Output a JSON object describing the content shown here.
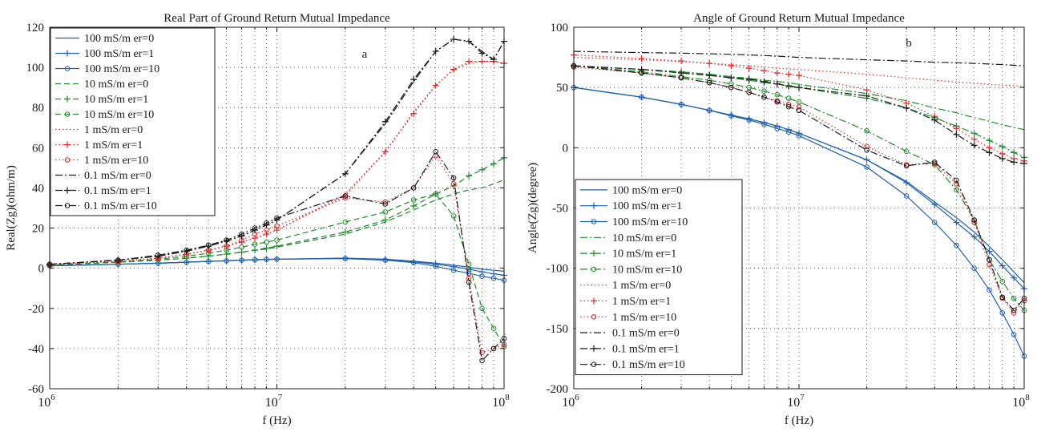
{
  "colors": {
    "blue": "#2060b0",
    "green": "#1f8a2a",
    "red": "#e02828",
    "black": "#1a1a1a"
  },
  "chart_data": [
    {
      "type": "line",
      "title": "Real Part of Ground Return Mutual Impedance",
      "xlabel": "f (Hz)",
      "ylabel": "Real(Zg)(ohm/m)",
      "annotation": "a",
      "x_scale": "log",
      "xlim": [
        1000000,
        100000000
      ],
      "ylim": [
        -60,
        120
      ],
      "yticks": [
        -60,
        -40,
        -20,
        0,
        20,
        40,
        60,
        80,
        100,
        120
      ],
      "grid": true,
      "legend_position": "top-left",
      "x": [
        1000000,
        2000000,
        3000000,
        4000000,
        5000000,
        6000000,
        7000000,
        8000000,
        9000000,
        10000000,
        20000000,
        30000000,
        40000000,
        50000000,
        60000000,
        70000000,
        80000000,
        90000000,
        100000000
      ],
      "series": [
        {
          "name": "100 mS/m er=0",
          "color": "blue",
          "dash": "solid",
          "marker": "none",
          "values": [
            1.2,
            2,
            2.5,
            3,
            3.4,
            3.7,
            4,
            4.2,
            4.4,
            4.5,
            5,
            4.5,
            3.5,
            2.5,
            1.5,
            0.5,
            -0.5,
            -1,
            -1.5
          ]
        },
        {
          "name": "100 mS/m er=1",
          "color": "blue",
          "dash": "solid",
          "marker": "plus",
          "values": [
            1.2,
            2,
            2.5,
            3,
            3.4,
            3.7,
            4,
            4.2,
            4.4,
            4.5,
            5,
            4.3,
            3.2,
            2,
            0.8,
            -0.5,
            -1.8,
            -2.8,
            -3.5
          ]
        },
        {
          "name": "100 mS/m er=10",
          "color": "blue",
          "dash": "solid",
          "marker": "circle",
          "values": [
            1.2,
            2,
            2.5,
            3,
            3.4,
            3.7,
            4,
            4.2,
            4.4,
            4.5,
            4.8,
            4,
            2.8,
            1,
            -1,
            -2.5,
            -4,
            -5,
            -6
          ]
        },
        {
          "name": "10 mS/m er=0",
          "color": "green",
          "dash": "dash",
          "marker": "none",
          "values": [
            1.5,
            3,
            4,
            5,
            6,
            7,
            8,
            9,
            9.5,
            10.5,
            17,
            23,
            29,
            34,
            37,
            39,
            40,
            42,
            44
          ]
        },
        {
          "name": "10 mS/m er=1",
          "color": "green",
          "dash": "dash",
          "marker": "plus",
          "values": [
            1.5,
            3,
            4,
            5,
            6,
            7,
            8,
            9,
            10,
            11,
            18,
            24,
            31,
            37,
            41,
            46,
            49,
            52,
            55
          ]
        },
        {
          "name": "10 mS/m er=10",
          "color": "green",
          "dash": "dash",
          "marker": "circle",
          "values": [
            1.5,
            3,
            4.5,
            6,
            7.5,
            9,
            10.5,
            12,
            13,
            14,
            23,
            28,
            34,
            37,
            26,
            2,
            -20,
            -30,
            -39
          ]
        },
        {
          "name": "1 mS/m er=0",
          "color": "red",
          "dash": "dot",
          "marker": "none",
          "values": [
            1.8,
            3.5,
            5,
            7,
            9,
            11,
            13,
            15,
            17,
            19,
            37,
            58,
            78,
            91,
            99,
            102,
            103,
            103,
            102
          ]
        },
        {
          "name": "1 mS/m er=1",
          "color": "red",
          "dash": "dot",
          "marker": "plus",
          "values": [
            1.8,
            3.5,
            5,
            7,
            9,
            11,
            13,
            15,
            17,
            19,
            36,
            58,
            77,
            91,
            99,
            103,
            103,
            103,
            102
          ]
        },
        {
          "name": "1 mS/m er=10",
          "color": "red",
          "dash": "dot",
          "marker": "circle",
          "values": [
            1.8,
            3.5,
            5,
            7,
            9,
            11,
            14,
            17,
            19,
            21,
            35,
            33,
            40,
            56,
            42,
            -5,
            -42,
            -40,
            -38
          ]
        },
        {
          "name": "0.1 mS/m er=0",
          "color": "black",
          "dash": "dashdot",
          "marker": "none",
          "values": [
            2,
            4,
            6,
            8.5,
            11,
            13.5,
            16,
            19,
            21.5,
            24,
            47,
            72,
            93,
            108,
            114,
            113,
            108,
            104,
            113
          ]
        },
        {
          "name": "0.1 mS/m er=1",
          "color": "black",
          "dash": "dashdot",
          "marker": "plus",
          "values": [
            2,
            4,
            6,
            8.5,
            11,
            13.5,
            16,
            19,
            21.5,
            24,
            47,
            73,
            94,
            108,
            114,
            113,
            107,
            104,
            113
          ]
        },
        {
          "name": "0.1 mS/m er=10",
          "color": "black",
          "dash": "dashdot",
          "marker": "circle",
          "values": [
            2,
            4,
            6.5,
            9,
            11.5,
            14,
            17,
            20,
            22.5,
            25,
            36,
            32,
            40,
            58,
            45,
            -7,
            -46,
            -40,
            -35
          ]
        }
      ]
    },
    {
      "type": "line",
      "title": "Angle of Ground Return Mutual Impedance",
      "xlabel": "f (Hz)",
      "ylabel": "Angle(Zg)(degree)",
      "annotation": "b",
      "x_scale": "log",
      "xlim": [
        1000000,
        100000000
      ],
      "ylim": [
        -200,
        100
      ],
      "yticks": [
        -200,
        -150,
        -100,
        -50,
        0,
        50,
        100
      ],
      "grid": true,
      "legend_position": "bottom-left",
      "x": [
        1000000,
        2000000,
        3000000,
        4000000,
        5000000,
        6000000,
        7000000,
        8000000,
        9000000,
        10000000,
        20000000,
        30000000,
        40000000,
        50000000,
        60000000,
        70000000,
        80000000,
        90000000,
        100000000
      ],
      "series": [
        {
          "name": "100 mS/m er=0",
          "color": "blue",
          "dash": "solid",
          "marker": "none",
          "values": [
            50,
            42,
            36,
            31,
            27,
            24,
            21,
            18,
            15,
            12,
            -10,
            -28,
            -45,
            -58,
            -70,
            -82,
            -93,
            -103,
            -112
          ]
        },
        {
          "name": "100 mS/m er=1",
          "color": "blue",
          "dash": "solid",
          "marker": "plus",
          "values": [
            50,
            42,
            36,
            31,
            27,
            24,
            21,
            18,
            15,
            12,
            -10,
            -29,
            -47,
            -62,
            -74,
            -86,
            -98,
            -108,
            -117
          ]
        },
        {
          "name": "100 mS/m er=10",
          "color": "blue",
          "dash": "solid",
          "marker": "circle",
          "values": [
            50,
            42,
            36,
            31,
            26.5,
            23,
            19.5,
            16,
            13,
            10,
            -16,
            -40,
            -62,
            -81,
            -100,
            -118,
            -137,
            -155,
            -173
          ]
        },
        {
          "name": "10 mS/m er=0",
          "color": "green",
          "dash": "dashdot",
          "marker": "none",
          "values": [
            68,
            65,
            63,
            61,
            59,
            57.5,
            56,
            55,
            54,
            52.5,
            45,
            39,
            33,
            29,
            25,
            22,
            19,
            17,
            15
          ]
        },
        {
          "name": "10 mS/m er=1",
          "color": "green",
          "dash": "dashdot",
          "marker": "plus",
          "values": [
            68,
            65,
            63,
            60.5,
            58,
            56,
            54,
            53,
            51.5,
            50,
            41,
            33,
            25,
            18,
            12,
            6,
            1,
            -4,
            -8
          ]
        },
        {
          "name": "10 mS/m er=10",
          "color": "green",
          "dash": "dashdot",
          "marker": "circle",
          "values": [
            68,
            63,
            59,
            56,
            53,
            50,
            47,
            44,
            41,
            38,
            14,
            -3,
            -14,
            -35,
            -60,
            -93,
            -111,
            -125,
            -135
          ]
        },
        {
          "name": "1 mS/m er=0",
          "color": "red",
          "dash": "dot",
          "marker": "none",
          "values": [
            75,
            73,
            71.5,
            70,
            69,
            68,
            67,
            66,
            65.5,
            65,
            61,
            58,
            56,
            54.5,
            53.5,
            52.5,
            52,
            51.5,
            51
          ]
        },
        {
          "name": "1 mS/m er=1",
          "color": "red",
          "dash": "dot",
          "marker": "plus",
          "values": [
            77,
            74,
            72,
            70,
            68,
            66,
            64,
            62,
            61,
            60,
            48,
            37,
            26,
            16,
            7,
            0,
            -5,
            -9,
            -11
          ]
        },
        {
          "name": "1 mS/m er=10",
          "color": "red",
          "dash": "dot",
          "marker": "circle",
          "values": [
            67,
            62,
            58,
            54,
            50,
            46,
            42,
            39,
            36,
            34,
            1,
            -14,
            -13,
            -30,
            -62,
            -97,
            -125,
            -137,
            -127
          ]
        },
        {
          "name": "0.1 mS/m er=0",
          "color": "black",
          "dash": "dashdot",
          "marker": "none",
          "values": [
            80,
            79,
            78.5,
            78,
            77.5,
            77,
            76.5,
            76,
            75.5,
            75,
            73,
            72,
            71,
            70.5,
            70,
            69.5,
            69,
            68.5,
            68
          ]
        },
        {
          "name": "0.1 mS/m er=1",
          "color": "black",
          "dash": "dashdot",
          "marker": "plus",
          "values": [
            68,
            65,
            62,
            60,
            58,
            57,
            55,
            53,
            51,
            50,
            43,
            33,
            23,
            11,
            2,
            -4,
            -9,
            -12,
            -13
          ]
        },
        {
          "name": "0.1 mS/m er=10",
          "color": "black",
          "dash": "dashdot",
          "marker": "circle",
          "values": [
            68,
            62,
            58,
            54,
            50,
            46,
            42,
            38,
            34,
            31,
            -2,
            -15,
            -12,
            -27,
            -60,
            -93,
            -124,
            -135,
            -125
          ]
        }
      ]
    }
  ]
}
